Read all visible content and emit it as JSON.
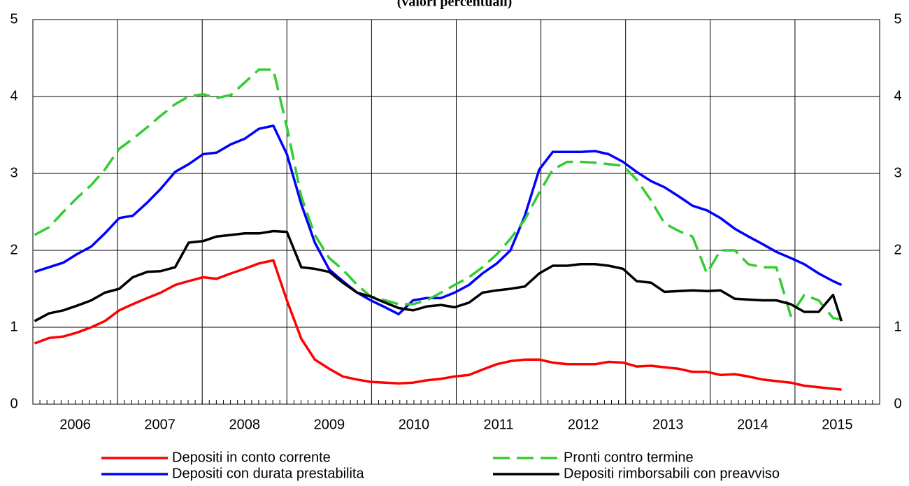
{
  "chart_data": {
    "type": "line",
    "title": "(valori percentuali)",
    "x": [
      2006.02,
      2006.19,
      2006.36,
      2006.52,
      2006.69,
      2006.85,
      2007.02,
      2007.18,
      2007.35,
      2007.51,
      2007.68,
      2007.84,
      2008.01,
      2008.17,
      2008.34,
      2008.5,
      2008.67,
      2008.84,
      2009.0,
      2009.17,
      2009.33,
      2009.5,
      2009.66,
      2009.83,
      2009.99,
      2010.16,
      2010.32,
      2010.49,
      2010.65,
      2010.82,
      2010.98,
      2011.15,
      2011.31,
      2011.48,
      2011.64,
      2011.81,
      2011.98,
      2012.14,
      2012.31,
      2012.47,
      2012.64,
      2012.8,
      2012.97,
      2013.13,
      2013.3,
      2013.46,
      2013.63,
      2013.79,
      2013.96,
      2014.12,
      2014.29,
      2014.45,
      2014.62,
      2014.78,
      2014.95,
      2015.11,
      2015.28,
      2015.45,
      2015.55
    ],
    "series": [
      {
        "name": "Depositi in conto corrente",
        "color": "#ff0000",
        "dash": false,
        "values": [
          0.79,
          0.86,
          0.88,
          0.93,
          1.0,
          1.08,
          1.22,
          1.3,
          1.38,
          1.45,
          1.55,
          1.6,
          1.65,
          1.63,
          1.7,
          1.76,
          1.83,
          1.87,
          1.35,
          0.85,
          0.58,
          0.46,
          0.36,
          0.32,
          0.29,
          0.28,
          0.27,
          0.28,
          0.31,
          0.33,
          0.36,
          0.38,
          0.45,
          0.52,
          0.56,
          0.58,
          0.58,
          0.54,
          0.52,
          0.52,
          0.52,
          0.55,
          0.54,
          0.49,
          0.5,
          0.48,
          0.46,
          0.42,
          0.42,
          0.38,
          0.39,
          0.36,
          0.32,
          0.3,
          0.28,
          0.24,
          0.22,
          0.2,
          0.19
        ]
      },
      {
        "name": "Depositi con durata prestabilita",
        "color": "#0000ff",
        "dash": false,
        "values": [
          1.72,
          1.78,
          1.84,
          1.95,
          2.05,
          2.22,
          2.42,
          2.45,
          2.62,
          2.8,
          3.02,
          3.12,
          3.25,
          3.27,
          3.38,
          3.45,
          3.58,
          3.62,
          3.25,
          2.6,
          2.1,
          1.75,
          1.6,
          1.45,
          1.35,
          1.26,
          1.17,
          1.35,
          1.38,
          1.38,
          1.45,
          1.55,
          1.7,
          1.83,
          2.0,
          2.45,
          3.05,
          3.28,
          3.28,
          3.28,
          3.29,
          3.25,
          3.15,
          3.02,
          2.9,
          2.82,
          2.7,
          2.58,
          2.52,
          2.42,
          2.28,
          2.18,
          2.08,
          1.98,
          1.9,
          1.82,
          1.7,
          1.6,
          1.55
        ]
      },
      {
        "name": "Pronti contro termine",
        "color": "#33cc33",
        "dash": true,
        "values": [
          2.2,
          2.3,
          2.5,
          2.68,
          2.85,
          3.05,
          3.32,
          3.45,
          3.6,
          3.75,
          3.9,
          4.0,
          4.03,
          3.98,
          4.02,
          4.18,
          4.35,
          4.35,
          3.6,
          2.7,
          2.2,
          1.9,
          1.75,
          1.55,
          1.4,
          1.35,
          1.3,
          1.3,
          1.35,
          1.45,
          1.55,
          1.65,
          1.78,
          1.95,
          2.15,
          2.4,
          2.75,
          3.05,
          3.15,
          3.15,
          3.14,
          3.12,
          3.1,
          2.92,
          2.65,
          2.35,
          2.25,
          2.18,
          1.7,
          2.0,
          2.0,
          1.82,
          1.78,
          1.78,
          1.15,
          1.42,
          1.35,
          1.12,
          1.1
        ]
      },
      {
        "name": "Depositi rimborsabili con preavviso",
        "color": "#000000",
        "dash": false,
        "values": [
          1.08,
          1.18,
          1.22,
          1.28,
          1.35,
          1.45,
          1.5,
          1.65,
          1.72,
          1.73,
          1.78,
          2.1,
          2.12,
          2.18,
          2.2,
          2.22,
          2.22,
          2.25,
          2.24,
          1.78,
          1.76,
          1.72,
          1.58,
          1.45,
          1.4,
          1.32,
          1.25,
          1.22,
          1.27,
          1.29,
          1.26,
          1.32,
          1.45,
          1.48,
          1.5,
          1.53,
          1.7,
          1.8,
          1.8,
          1.82,
          1.82,
          1.8,
          1.76,
          1.6,
          1.58,
          1.46,
          1.47,
          1.48,
          1.47,
          1.48,
          1.37,
          1.36,
          1.35,
          1.35,
          1.3,
          1.2,
          1.2,
          1.42,
          1.08
        ]
      }
    ],
    "xlim": [
      2006,
      2016
    ],
    "xticks": [
      2006,
      2007,
      2008,
      2009,
      2010,
      2011,
      2012,
      2013,
      2014,
      2015
    ],
    "ylim": [
      0,
      5
    ],
    "yticks": [
      0,
      1,
      2,
      3,
      4,
      5
    ],
    "grid": true
  }
}
